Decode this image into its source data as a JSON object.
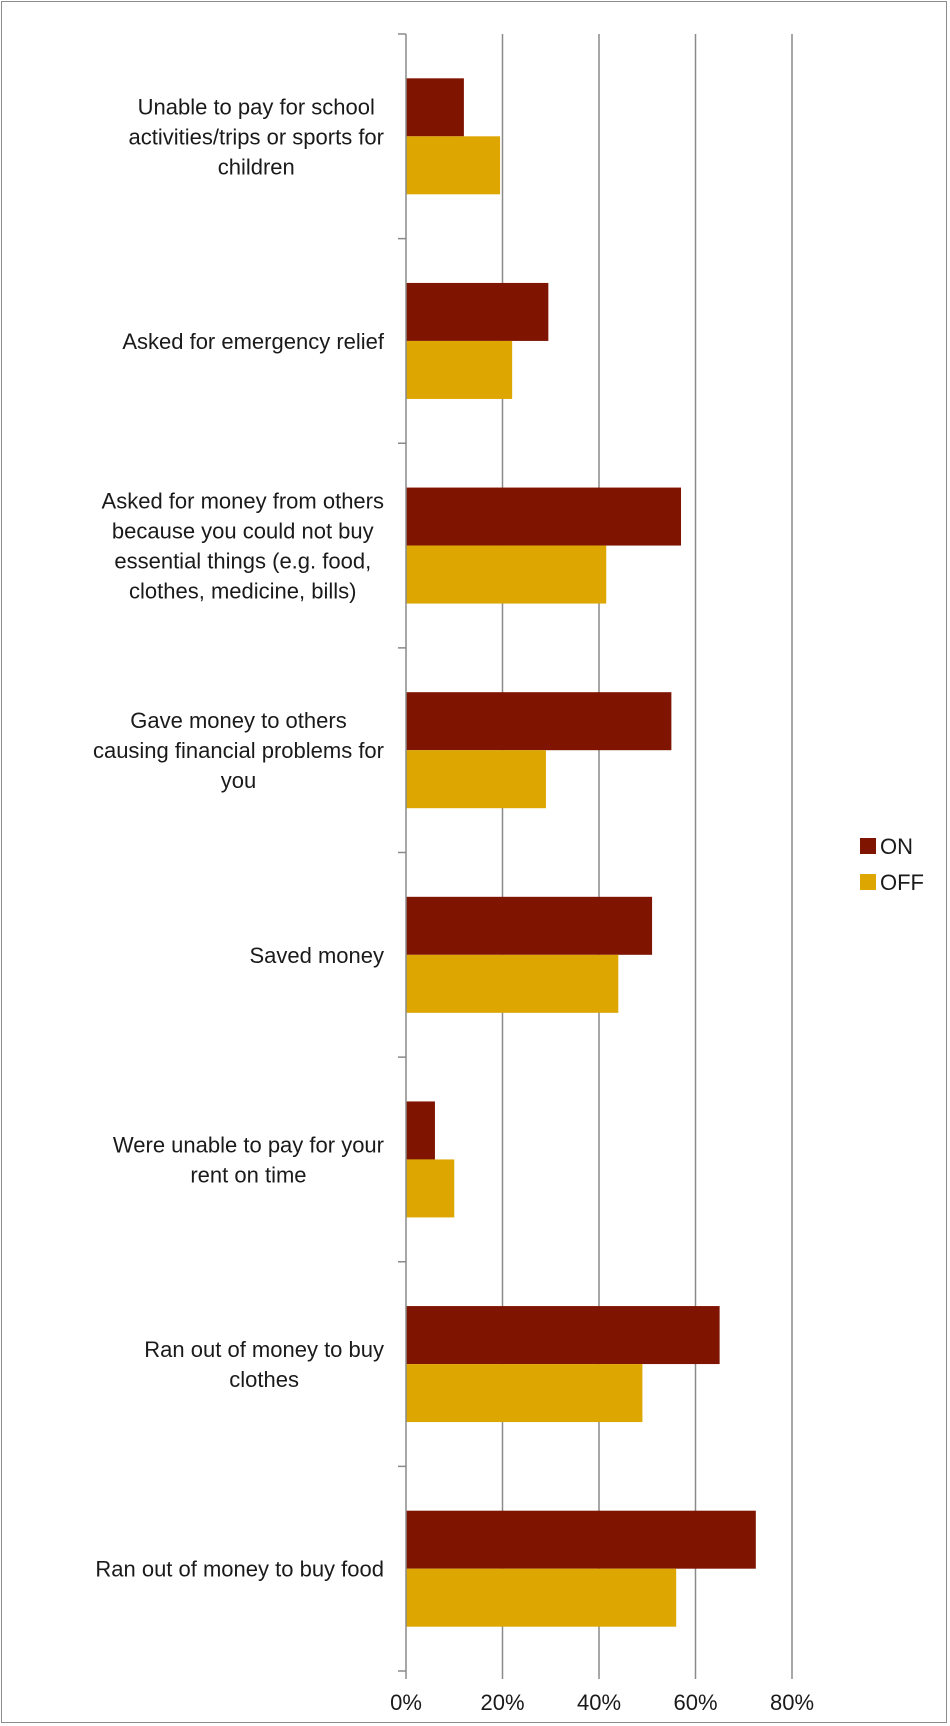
{
  "chart_data": {
    "type": "bar",
    "orientation": "horizontal",
    "categories": [
      "Unable to pay for school activities/trips or sports for children",
      "Asked for emergency relief",
      "Asked for money from others because you could not buy essential things (e.g. food, clothes, medicine, bills)",
      "Gave money to others causing financial problems for you",
      "Saved money",
      "Were unable to pay for your rent on time",
      "Ran out of money to buy clothes",
      "Ran out of money to buy food"
    ],
    "category_lines": [
      [
        "Unable to pay for school",
        "activities/trips or sports for",
        "children"
      ],
      [
        "Asked for emergency relief"
      ],
      [
        "Asked for money from others",
        "because you could not buy",
        "essential things (e.g. food,",
        "clothes, medicine, bills)"
      ],
      [
        "Gave money to others",
        "causing financial problems for",
        "you"
      ],
      [
        "Saved money"
      ],
      [
        "Were unable to pay for your",
        "rent on time"
      ],
      [
        "Ran out of money to buy",
        "clothes"
      ],
      [
        "Ran out of money to buy food"
      ]
    ],
    "series": [
      {
        "name": "ON",
        "color": "#7f1400",
        "values": [
          12,
          29.5,
          57,
          55,
          51,
          6,
          65,
          72.5
        ]
      },
      {
        "name": "OFF",
        "color": "#dda600",
        "values": [
          19.5,
          22,
          41.5,
          29,
          44,
          10,
          49,
          56
        ]
      }
    ],
    "xlim": [
      0,
      80
    ],
    "xticks": [
      0,
      20,
      40,
      60,
      80
    ],
    "xtick_labels": [
      "0%",
      "20%",
      "40%",
      "60%",
      "80%"
    ],
    "grid": true,
    "legend_position": "right",
    "title": "",
    "xlabel": "",
    "ylabel": ""
  }
}
